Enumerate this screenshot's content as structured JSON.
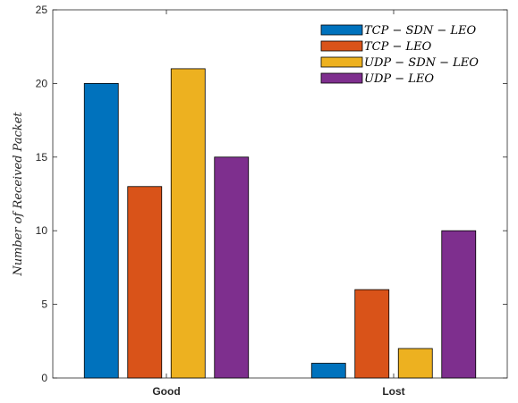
{
  "chart_data": {
    "type": "bar",
    "title": "",
    "xlabel": "",
    "ylabel": "Number of Received Packet",
    "categories": [
      "Good",
      "Lost"
    ],
    "series": [
      {
        "name": "TCP − SDN − LEO",
        "values": [
          20,
          1
        ],
        "color": "#0072BD"
      },
      {
        "name": "TCP − LEO",
        "values": [
          13,
          6
        ],
        "color": "#D95319"
      },
      {
        "name": "UDP − SDN − LEO",
        "values": [
          21,
          2
        ],
        "color": "#EDB120"
      },
      {
        "name": "UDP − LEO",
        "values": [
          15,
          10
        ],
        "color": "#7E2F8E"
      }
    ],
    "ylim": [
      0,
      25
    ],
    "yticks": [
      "0",
      "5",
      "10",
      "15",
      "20",
      "25"
    ],
    "legend_position": "top-right",
    "grid": false
  }
}
